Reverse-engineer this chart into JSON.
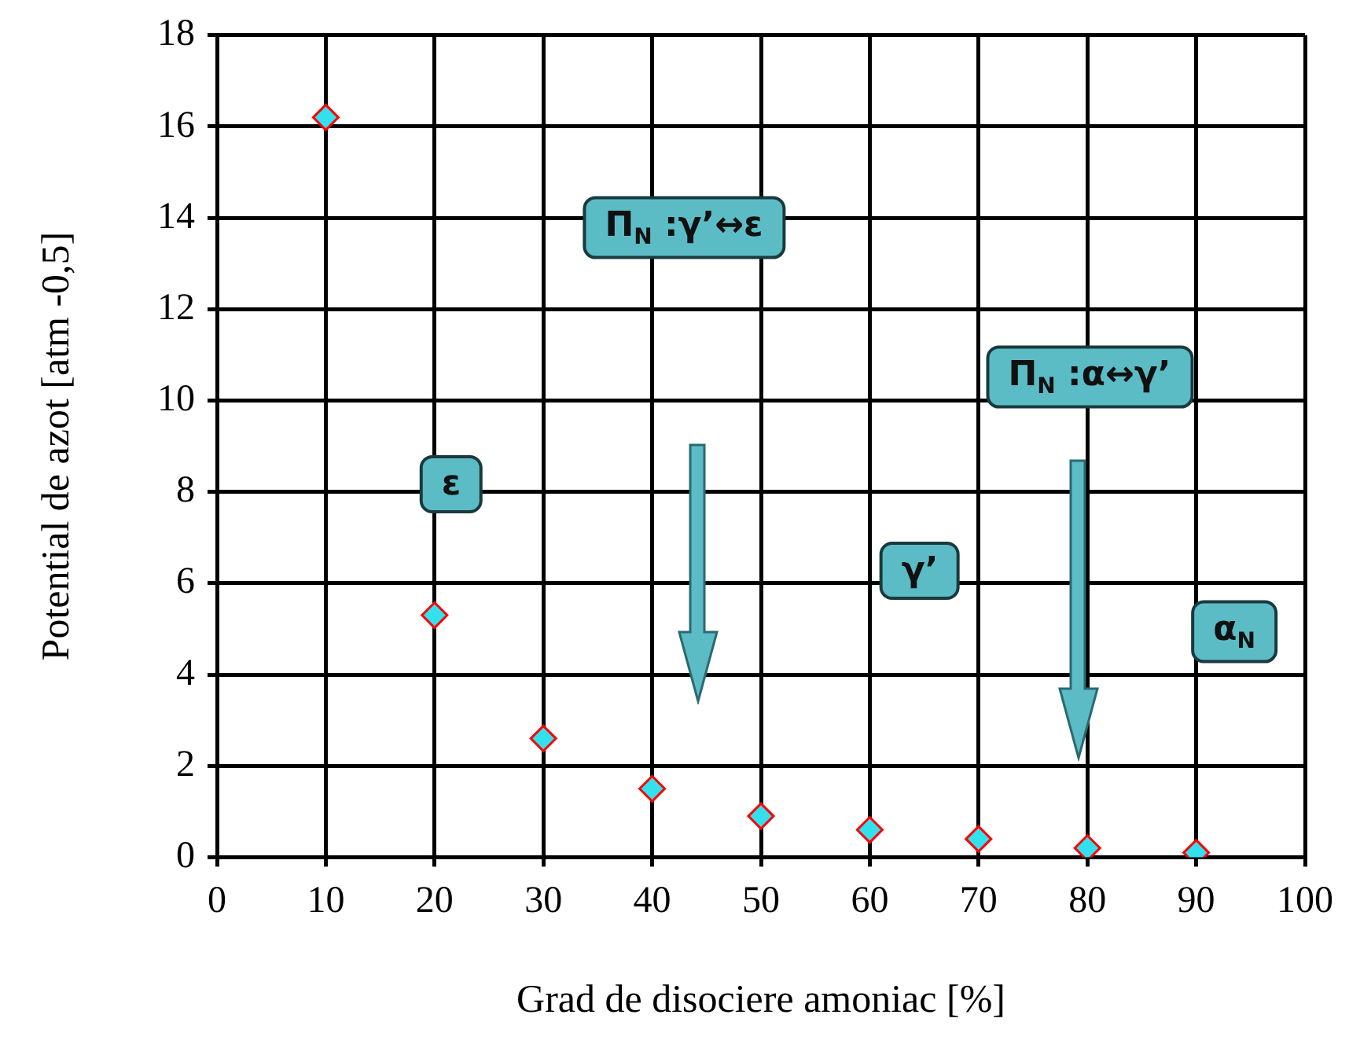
{
  "chart_data": {
    "type": "scatter",
    "xlabel": "Grad de disociere amoniac [%]",
    "ylabel": "Potential de azot [atm -0,5]",
    "x": [
      10,
      20,
      30,
      40,
      50,
      60,
      70,
      80,
      90
    ],
    "series": [
      {
        "color": "#33e0ee",
        "values": [
          16.2,
          5.3,
          2.6,
          1.5,
          0.9,
          0.6,
          0.4,
          0.2,
          0.1
        ]
      }
    ],
    "marker": "diamond",
    "xlim": [
      0,
      100
    ],
    "xticks": [
      0,
      10,
      20,
      30,
      40,
      50,
      60,
      70,
      80,
      90,
      100
    ],
    "ylim": [
      0,
      18
    ],
    "yticks": [
      0,
      2,
      4,
      6,
      8,
      10,
      12,
      14,
      16,
      18
    ],
    "grid": true,
    "legend": false,
    "annotations": [
      "ε",
      "γ’",
      "α$_{N}$",
      "Π$_{N}$ :γ’↔ε",
      "Π$_{N}$ :α↔γ’"
    ]
  }
}
